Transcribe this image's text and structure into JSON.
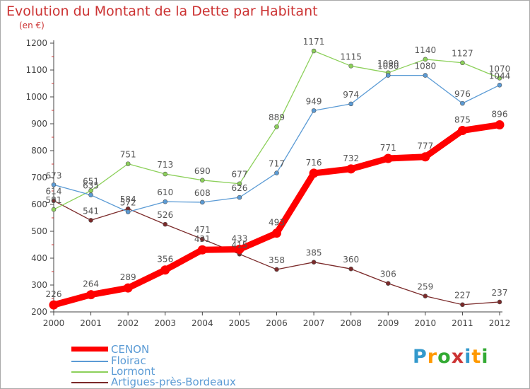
{
  "header": {
    "title": "Evolution du Montant de la Dette par Habitant",
    "subtitle": "(en €)"
  },
  "logo": {
    "text": "Proxiti",
    "colors": [
      "#3399cc",
      "#ff9900",
      "#33aa33",
      "#cc3333",
      "#3399cc",
      "#ff9900",
      "#33aa33"
    ]
  },
  "chart_data": {
    "type": "line",
    "title": "Evolution du Montant de la Dette par Habitant",
    "subtitle": "(en €)",
    "x": [
      "2000",
      "2001",
      "2002",
      "2003",
      "2004",
      "2005",
      "2006",
      "2007",
      "2008",
      "2009",
      "2010",
      "2011",
      "2012"
    ],
    "ylim": [
      200,
      1200
    ],
    "yticks": [
      200,
      300,
      400,
      500,
      600,
      700,
      800,
      900,
      1000,
      1100,
      1200
    ],
    "grid": false,
    "legend_position": "bottom-left",
    "series": [
      {
        "name": "CENON",
        "color": "#ff0000",
        "values": [
          226,
          264,
          289,
          356,
          431,
          433,
          493,
          716,
          732,
          771,
          777,
          875,
          896
        ],
        "labels": true
      },
      {
        "name": "Floirac",
        "color": "#5b9bd5",
        "values": [
          673,
          635,
          572,
          610,
          608,
          626,
          717,
          949,
          974,
          1080,
          1080,
          976,
          1044
        ],
        "labels": true
      },
      {
        "name": "Lormont",
        "color": "#8cd05a",
        "values": [
          581,
          651,
          751,
          713,
          690,
          677,
          889,
          1171,
          1115,
          1090,
          1140,
          1127,
          1070
        ],
        "labels": true
      },
      {
        "name": "Artigues-près-Bordeaux",
        "color": "#7b2a2a",
        "values": [
          614,
          541,
          584,
          526,
          471,
          415,
          358,
          385,
          360,
          306,
          259,
          227,
          237
        ],
        "labels": true
      }
    ]
  }
}
